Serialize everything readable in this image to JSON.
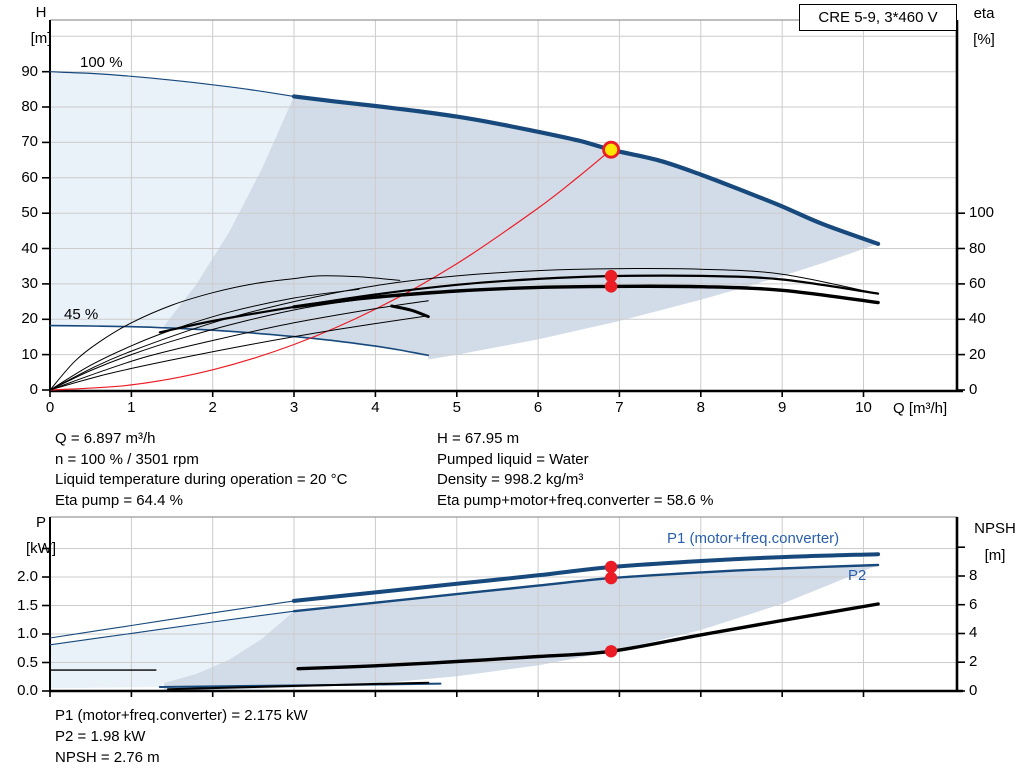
{
  "title_box": "CRE 5-9, 3*460 V",
  "colors": {
    "curve_blue": "#17497C",
    "label_blue": "#2A5FAC",
    "red": "#EC1C24",
    "yellow": "#FFE600",
    "black": "#000000",
    "steel_fill": "#D2DCE8",
    "pale_fill": "#E9F1F9",
    "grid": "#CCCCCC",
    "border_gray": "#999999"
  },
  "annotations": {
    "speed_100": "100 %",
    "speed_45": "45 %",
    "p1_curve": "P1 (motor+freq.converter)",
    "p2_curve": "P2"
  },
  "text_blocks": {
    "left": [
      "Q = 6.897 m³/h",
      "n = 100 % / 3501 rpm",
      "Liquid temperature during operation = 20 °C",
      "Eta pump = 64.4 %"
    ],
    "right": [
      "H = 67.95 m",
      "Pumped liquid = Water",
      "Density = 998.2 kg/m³",
      "Eta pump+motor+freq.converter = 58.6 %"
    ],
    "bottom": [
      "P1 (motor+freq.converter) = 2.175 kW",
      "P2 = 1.98 kW",
      "NPSH = 2.76 m"
    ]
  },
  "chart_data": [
    {
      "type": "line",
      "title": "CRE 5-9, 3*460 V",
      "x_axis": {
        "label": "Q [m³/h]",
        "min": 0,
        "max": 11.15,
        "tick_values": [
          0,
          1,
          2,
          3,
          4,
          5,
          6,
          7,
          8,
          9,
          10
        ],
        "tick_labels": [
          "0",
          "1",
          "2",
          "3",
          "4",
          "5",
          "6",
          "7",
          "8",
          "9",
          "10"
        ]
      },
      "y_left": {
        "label_lines": [
          "H",
          "[m]"
        ],
        "min": 0,
        "max": 104.6,
        "tick_values": [
          0,
          10,
          20,
          30,
          40,
          50,
          60,
          70,
          80,
          90
        ],
        "tick_labels": [
          "0",
          "10",
          "20",
          "30",
          "40",
          "50",
          "60",
          "70",
          "80",
          "90"
        ],
        "extra_gridlines": [
          100
        ]
      },
      "y_right": {
        "label_lines": [
          "eta",
          "[%]"
        ],
        "min": 0,
        "max": 209,
        "tick_values": [
          0,
          20,
          40,
          60,
          80,
          100
        ],
        "tick_labels": [
          "0",
          "20",
          "40",
          "60",
          "80",
          "100"
        ]
      },
      "duty_point": {
        "q": 6.897,
        "value": 67.95,
        "axis": "H",
        "style": "yellow-red"
      },
      "marker_points": [
        {
          "name": "eta-pump-marker",
          "q": 6.897,
          "axis": "eta",
          "value": 64.4
        },
        {
          "name": "eta-total-marker",
          "q": 6.897,
          "axis": "eta",
          "value": 58.6
        }
      ],
      "regions": [
        {
          "name": "operating-envelope-pale",
          "axis": "H",
          "fill": "pale_fill",
          "points": [
            [
              0,
              90
            ],
            [
              0.5,
              89.5
            ],
            [
              1,
              88.7
            ],
            [
              1.5,
              87.6
            ],
            [
              2,
              86.3
            ],
            [
              2.5,
              84.8
            ],
            [
              3,
              83
            ],
            [
              2.6,
              62.3
            ],
            [
              2.2,
              44.6
            ],
            [
              1.8,
              29.9
            ],
            [
              1.4,
              18.1
            ],
            [
              1,
              17.9
            ],
            [
              0.5,
              18.1
            ],
            [
              0,
              18.2
            ]
          ]
        },
        {
          "name": "operating-envelope-steel",
          "axis": "H",
          "fill": "steel_fill",
          "points": [
            [
              1.4,
              18.1
            ],
            [
              1.8,
              29.9
            ],
            [
              2.2,
              44.6
            ],
            [
              2.6,
              62.3
            ],
            [
              3,
              83
            ],
            [
              3.5,
              81.6
            ],
            [
              4,
              80.3
            ],
            [
              4.5,
              78.9
            ],
            [
              5,
              77.3
            ],
            [
              5.5,
              75.3
            ],
            [
              6,
              73
            ],
            [
              6.5,
              70.5
            ],
            [
              6.897,
              67.95
            ],
            [
              7.5,
              64.8
            ],
            [
              8,
              60.9
            ],
            [
              8.5,
              56.5
            ],
            [
              9,
              51.9
            ],
            [
              9.5,
              46.9
            ],
            [
              10.18,
              41.3
            ],
            [
              9.5,
              35.9
            ],
            [
              9,
              32.2
            ],
            [
              8.5,
              28.8
            ],
            [
              8,
              25.5
            ],
            [
              7,
              19.5
            ],
            [
              6,
              14.3
            ],
            [
              5,
              9.96
            ],
            [
              4.65,
              8.62
            ],
            [
              4.65,
              9.8
            ],
            [
              4.3,
              11.3
            ],
            [
              4,
              12.4
            ],
            [
              3.5,
              13.9
            ],
            [
              3,
              15.1
            ],
            [
              2.5,
              16.1
            ],
            [
              2,
              16.9
            ],
            [
              1.4,
              17.5
            ]
          ]
        }
      ],
      "series": [
        {
          "name": "pump-curve-100-extension",
          "axis": "H",
          "color": "curve_blue",
          "width": 1.2,
          "q": [
            0,
            0.5,
            1,
            1.5,
            2,
            2.5,
            3
          ],
          "v": [
            90,
            89.5,
            88.7,
            87.6,
            86.3,
            84.8,
            83
          ]
        },
        {
          "name": "pump-curve-100",
          "axis": "H",
          "color": "curve_blue",
          "width": 4.2,
          "q": [
            3,
            3.5,
            4,
            4.5,
            5,
            5.5,
            6,
            6.5,
            6.897,
            7.5,
            8,
            8.5,
            9,
            9.5,
            10.18
          ],
          "v": [
            83,
            81.6,
            80.3,
            78.9,
            77.3,
            75.3,
            73,
            70.5,
            67.95,
            64.8,
            60.9,
            56.5,
            51.9,
            46.9,
            41.3
          ]
        },
        {
          "name": "pump-curve-45",
          "axis": "H",
          "color": "curve_blue",
          "width": 1.6,
          "q": [
            0,
            0.5,
            1,
            1.5,
            2,
            2.5,
            3,
            3.5,
            4,
            4.3,
            4.65
          ],
          "v": [
            18.2,
            18.1,
            17.9,
            17.5,
            16.9,
            16.1,
            15.1,
            13.9,
            12.4,
            11.3,
            9.8
          ]
        },
        {
          "name": "system-curve",
          "axis": "H",
          "color": "red",
          "width": 1.2,
          "q": [
            0,
            1,
            2,
            3,
            4,
            5,
            6,
            6.5,
            6.897
          ],
          "v": [
            0,
            1.43,
            5.71,
            12.86,
            22.86,
            35.71,
            51.43,
            60.36,
            67.95
          ]
        },
        {
          "name": "eta-curve-45",
          "axis": "eta",
          "color": "black",
          "width": 1,
          "q": [
            0,
            0.3,
            0.6,
            1,
            1.5,
            2,
            2.5,
            3,
            3.3,
            3.8,
            4.3
          ],
          "v": [
            0,
            16,
            27,
            38,
            48,
            55,
            60,
            63,
            64.5,
            64,
            62
          ]
        },
        {
          "name": "eta-curve-100",
          "axis": "eta",
          "color": "black",
          "width": 1,
          "q": [
            0,
            0.5,
            1,
            2,
            3,
            4,
            5,
            6,
            6.897,
            8,
            9,
            10.18
          ],
          "v": [
            0,
            12,
            22,
            38,
            50,
            59,
            64.5,
            67.5,
            68.6,
            68.3,
            65.5,
            54.4
          ]
        },
        {
          "name": "eta-pump-curve",
          "axis": "eta",
          "color": "black",
          "width": 2.2,
          "q": [
            1.35,
            2,
            3,
            4,
            5,
            6,
            6.897,
            8,
            9,
            10.18
          ],
          "v": [
            32.6,
            39,
            47,
            54,
            59.5,
            62.8,
            64.4,
            64.5,
            62.5,
            54.5
          ]
        },
        {
          "name": "eta-total-curve",
          "axis": "eta",
          "color": "black",
          "width": 3.4,
          "q": [
            3,
            3.5,
            4,
            5,
            6,
            6.897,
            8,
            9,
            10.18
          ],
          "v": [
            47,
            50,
            52.5,
            56,
            58,
            58.6,
            58.4,
            56.4,
            49.4
          ]
        },
        {
          "name": "eta-speed-curve-1",
          "axis": "eta",
          "color": "black",
          "width": 1,
          "q": [
            0,
            0.5,
            1,
            1.5,
            2.2,
            3,
            3.8
          ],
          "v": [
            0,
            14,
            25,
            34,
            44,
            52,
            57
          ]
        },
        {
          "name": "eta-speed-curve-2",
          "axis": "eta",
          "color": "black",
          "width": 1,
          "q": [
            0,
            0.5,
            1,
            1.6,
            2.4,
            3.2,
            4.2
          ],
          "v": [
            0,
            11,
            20,
            29,
            39,
            47,
            53.5
          ]
        },
        {
          "name": "eta-speed-curve-3",
          "axis": "eta",
          "color": "black",
          "width": 1,
          "q": [
            0,
            0.6,
            1.2,
            2,
            3,
            4,
            4.65
          ],
          "v": [
            0,
            10,
            19,
            28,
            38,
            46,
            50.5
          ]
        },
        {
          "name": "eta-speed-curve-4",
          "axis": "eta",
          "color": "black",
          "width": 1,
          "q": [
            0,
            0.7,
            1.5,
            2.5,
            3.5,
            4.65
          ],
          "v": [
            0,
            9,
            17,
            26,
            34,
            42
          ]
        },
        {
          "name": "eta-hook-segment",
          "axis": "eta",
          "color": "black",
          "width": 3,
          "q": [
            4.2,
            4.45,
            4.65
          ],
          "v": [
            47.5,
            45,
            41.5
          ]
        }
      ]
    },
    {
      "type": "line",
      "x_axis": {
        "label": "",
        "min": 0,
        "max": 11.15,
        "tick_values": [
          0,
          1,
          2,
          3,
          4,
          5,
          6,
          7,
          8,
          9,
          10
        ],
        "tick_labels": []
      },
      "y_left": {
        "label_lines": [
          "P",
          "[kW]"
        ],
        "min": 0,
        "max": 3.05,
        "tick_values": [
          0,
          0.5,
          1,
          1.5,
          2
        ],
        "tick_labels": [
          "0.0",
          "0.5",
          "1.0",
          "1.5",
          "2.0"
        ],
        "extra_ticks": [
          2.5
        ],
        "extra_gridlines": [
          2.5
        ]
      },
      "y_right": {
        "label_lines": [
          "NPSH",
          "[m]"
        ],
        "min": 0,
        "max": 12.1,
        "tick_values": [
          0,
          2,
          4,
          6,
          8
        ],
        "tick_labels": [
          "0",
          "2",
          "4",
          "6",
          "8"
        ],
        "extra_ticks": [
          10
        ]
      },
      "marker_points": [
        {
          "name": "p1-marker",
          "q": 6.897,
          "axis": "P",
          "value": 2.175
        },
        {
          "name": "p2-marker",
          "q": 6.897,
          "axis": "P",
          "value": 1.98
        },
        {
          "name": "npsh-marker",
          "q": 6.897,
          "axis": "N",
          "value": 2.76
        }
      ],
      "regions": [
        {
          "name": "power-envelope-pale",
          "axis": "P",
          "fill": "pale_fill",
          "points": [
            [
              0,
              0.81
            ],
            [
              1,
              1.01
            ],
            [
              2,
              1.21
            ],
            [
              3,
              1.4
            ],
            [
              2.6,
              0.91
            ],
            [
              2.2,
              0.55
            ],
            [
              1.8,
              0.3
            ],
            [
              1.4,
              0.14
            ],
            [
              1.35,
              0.07
            ],
            [
              0,
              0.05
            ]
          ]
        },
        {
          "name": "power-envelope-steel",
          "axis": "P",
          "fill": "steel_fill",
          "points": [
            [
              1.4,
              0.14
            ],
            [
              1.8,
              0.3
            ],
            [
              2.2,
              0.55
            ],
            [
              2.6,
              0.91
            ],
            [
              3,
              1.4
            ],
            [
              4,
              1.55
            ],
            [
              5,
              1.7
            ],
            [
              6,
              1.85
            ],
            [
              6.897,
              1.98
            ],
            [
              8,
              2.08
            ],
            [
              9,
              2.15
            ],
            [
              10.18,
              2.21
            ],
            [
              9,
              1.53
            ],
            [
              8,
              1.07
            ],
            [
              7,
              0.72
            ],
            [
              6,
              0.45
            ],
            [
              5,
              0.26
            ],
            [
              4,
              0.13
            ],
            [
              3,
              0.06
            ],
            [
              2,
              0.02
            ],
            [
              1.4,
              0.006
            ]
          ]
        }
      ],
      "series": [
        {
          "name": "p1-curve-extension",
          "axis": "P",
          "color": "curve_blue",
          "width": 1.1,
          "q": [
            0,
            1,
            2,
            3
          ],
          "v": [
            0.93,
            1.15,
            1.37,
            1.58
          ]
        },
        {
          "name": "p2-curve-extension",
          "axis": "P",
          "color": "curve_blue",
          "width": 1.1,
          "q": [
            0,
            1,
            2,
            3
          ],
          "v": [
            0.81,
            1.01,
            1.21,
            1.4
          ]
        },
        {
          "name": "p1-curve",
          "axis": "P",
          "color": "curve_blue",
          "width": 4,
          "q": [
            3,
            4,
            5,
            6,
            6.897,
            8,
            9,
            10.18
          ],
          "v": [
            1.58,
            1.73,
            1.88,
            2.03,
            2.175,
            2.28,
            2.35,
            2.4
          ]
        },
        {
          "name": "p2-curve",
          "axis": "P",
          "color": "curve_blue",
          "width": 2.4,
          "q": [
            3,
            4,
            5,
            6,
            6.897,
            8,
            9,
            10.18
          ],
          "v": [
            1.4,
            1.55,
            1.7,
            1.85,
            1.98,
            2.08,
            2.15,
            2.21
          ]
        },
        {
          "name": "p1-curve-45",
          "axis": "P",
          "color": "curve_blue",
          "width": 2,
          "q": [
            1.35,
            2.5,
            3.8,
            4.8
          ],
          "v": [
            0.07,
            0.09,
            0.11,
            0.13
          ]
        },
        {
          "name": "npsh-flat-segment",
          "axis": "N",
          "color": "black",
          "width": 1.4,
          "q": [
            0,
            1.3
          ],
          "v": [
            1.45,
            1.45
          ]
        },
        {
          "name": "npsh-curve-45",
          "axis": "N",
          "color": "black",
          "width": 2,
          "q": [
            1.45,
            2.5,
            3.5,
            4.65
          ],
          "v": [
            0.12,
            0.28,
            0.42,
            0.58
          ]
        },
        {
          "name": "npsh-curve",
          "axis": "N",
          "color": "black",
          "width": 3.4,
          "q": [
            3.05,
            4,
            5,
            6,
            6.897,
            8,
            9,
            10.18
          ],
          "v": [
            1.55,
            1.75,
            2.05,
            2.4,
            2.76,
            3.9,
            4.9,
            6.05
          ]
        }
      ]
    }
  ]
}
